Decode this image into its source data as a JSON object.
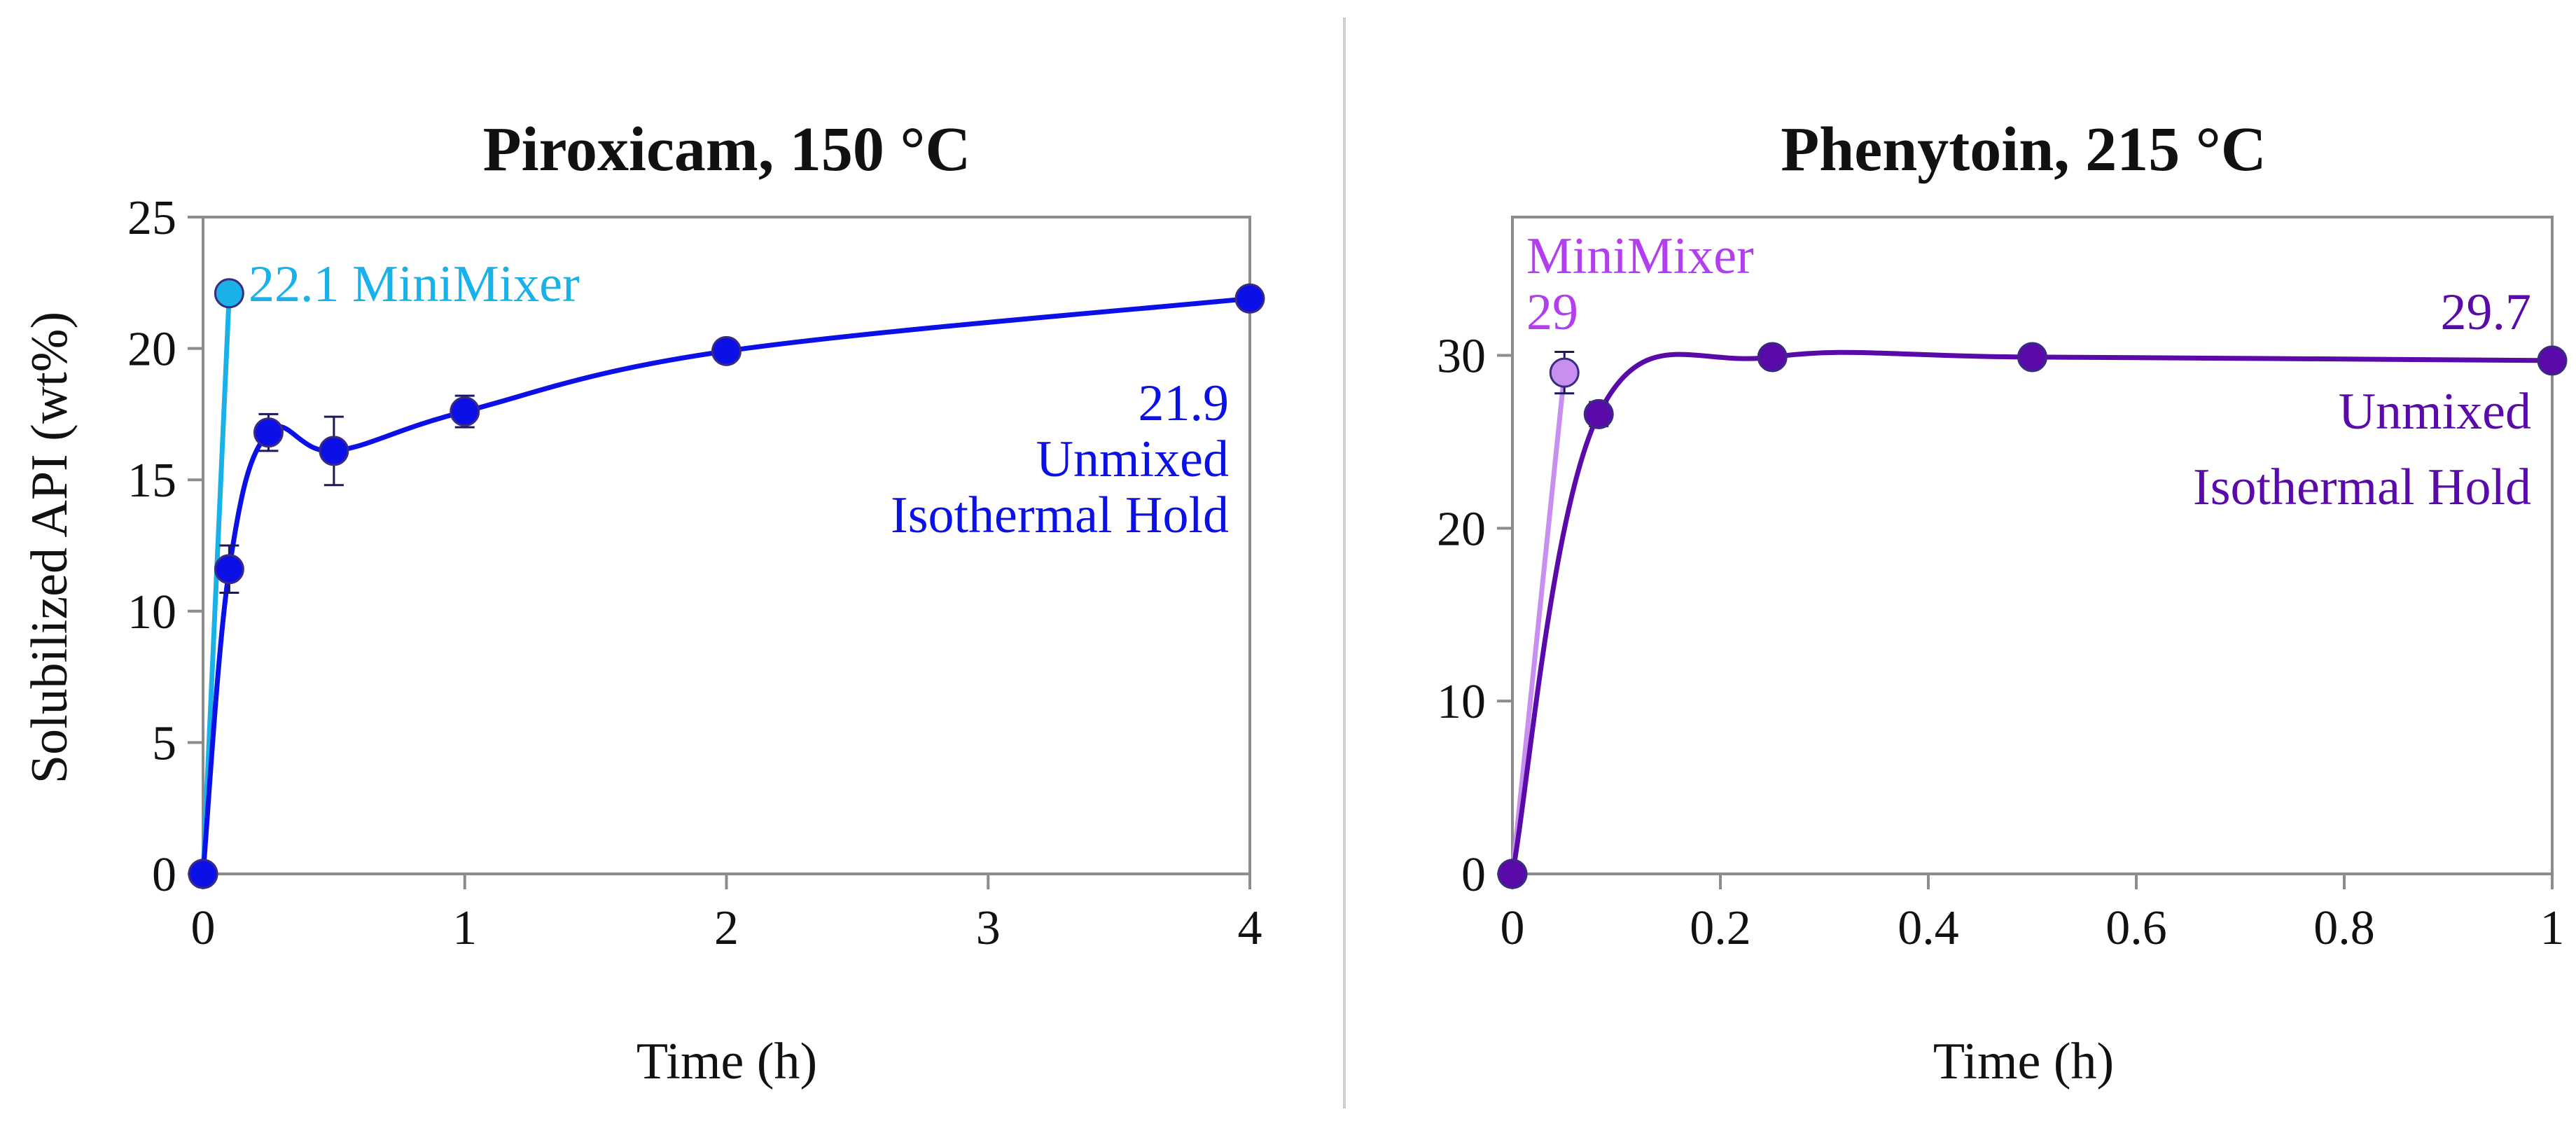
{
  "chart_data": [
    {
      "type": "line",
      "title": "Piroxicam, 150 °C",
      "xlabel": "Time (h)",
      "ylabel": "Solubilized API (wt%)",
      "xlim": [
        0,
        4
      ],
      "ylim": [
        0,
        25
      ],
      "x_ticks": [
        0,
        1,
        2,
        3,
        4
      ],
      "y_ticks": [
        0,
        5,
        10,
        15,
        20,
        25
      ],
      "grid": false,
      "series": [
        {
          "name": "MiniMixer",
          "color": "#1ab0e8",
          "x": [
            0,
            0.1
          ],
          "y": [
            0,
            22.1
          ],
          "err": [
            0,
            0
          ]
        },
        {
          "name": "Unmixed Isothermal Hold",
          "color": "#0a10e6",
          "x": [
            0,
            0.1,
            0.25,
            0.5,
            1,
            2,
            4
          ],
          "y": [
            0,
            11.6,
            16.8,
            16.1,
            17.6,
            19.9,
            21.9
          ],
          "err": [
            0,
            0.9,
            0.7,
            1.3,
            0.6,
            0.4,
            0
          ]
        }
      ],
      "annotations": [
        {
          "text": "22.1 MiniMixer",
          "series": 0
        },
        {
          "text": "21.9",
          "series": 1
        },
        {
          "text": "Unmixed",
          "series": 1
        },
        {
          "text": "Isothermal Hold",
          "series": 1
        }
      ]
    },
    {
      "type": "line",
      "title": "Phenytoin, 215 °C",
      "xlabel": "Time (h)",
      "ylabel": "",
      "xlim": [
        0,
        1
      ],
      "ylim": [
        0,
        38
      ],
      "x_ticks": [
        0,
        0.2,
        0.4,
        0.6,
        0.8,
        1
      ],
      "x_tick_labels": [
        "0",
        "0.2",
        "0.4",
        "0.6",
        "0.8",
        "1"
      ],
      "y_ticks": [
        0,
        10,
        20,
        30
      ],
      "grid": false,
      "series": [
        {
          "name": "MiniMixer",
          "color": "#c98ff0",
          "x": [
            0,
            0.05
          ],
          "y": [
            0,
            29
          ],
          "err": [
            0,
            1.2
          ]
        },
        {
          "name": "Unmixed Isothermal Hold",
          "color": "#5a0aa8",
          "x": [
            0,
            0.083,
            0.25,
            0.5,
            1
          ],
          "y": [
            0,
            26.6,
            29.9,
            29.9,
            29.7
          ],
          "err": [
            0,
            0.7,
            0,
            0,
            0
          ]
        }
      ],
      "annotations": [
        {
          "text": "MiniMixer",
          "series": 0
        },
        {
          "text": "29",
          "series": 0
        },
        {
          "text": "29.7",
          "series": 1
        },
        {
          "text": "Unmixed",
          "series": 1
        },
        {
          "text": "Isothermal Hold",
          "series": 1
        }
      ]
    }
  ]
}
